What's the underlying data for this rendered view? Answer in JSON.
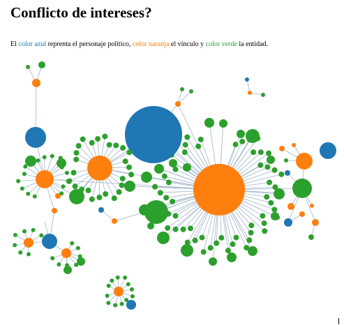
{
  "title": "Conflicto de intereses?",
  "legend": {
    "p1": "El ",
    "blue": "color azul",
    "p2": " reprenta el personaje político, ",
    "orange": "color naranja",
    "p3": " el vínculo y ",
    "green": "color verde",
    "p4": " la entidad."
  },
  "colors": {
    "politician": "#1f77b4",
    "link": "#ff7f0e",
    "entity": "#2ca02c",
    "edge": "#9fb4c9"
  }
}
